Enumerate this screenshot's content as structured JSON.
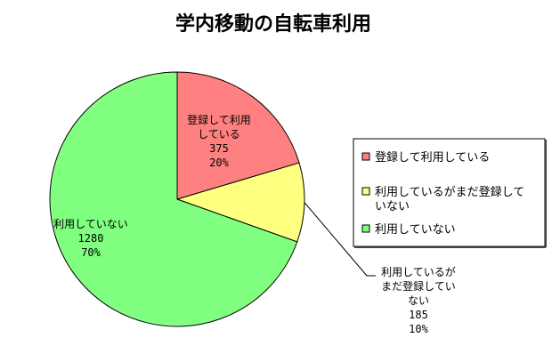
{
  "chart_data": {
    "type": "pie",
    "title": "学内移動の自転車利用",
    "start_angle_deg": 90,
    "direction": "clockwise",
    "legend_placement": "right",
    "slices": [
      {
        "name": "登録して利用している",
        "value": 375,
        "percent": "20%",
        "color": "#ff8080",
        "label_lines": [
          "登録して利用",
          "している",
          "375",
          "20%"
        ]
      },
      {
        "name": "利用しているがまだ登録していない",
        "value": 185,
        "percent": "10%",
        "color": "#ffff80",
        "label_lines": [
          "利用しているが",
          "まだ登録してい",
          "ない",
          "185",
          "10%"
        ],
        "legend_lines": [
          "利用しているがまだ登録して",
          "いない"
        ]
      },
      {
        "name": "利用していない",
        "value": 1280,
        "percent": "70%",
        "color": "#80ff80",
        "label_lines": [
          "利用していない",
          "1280",
          "70%"
        ]
      }
    ]
  }
}
